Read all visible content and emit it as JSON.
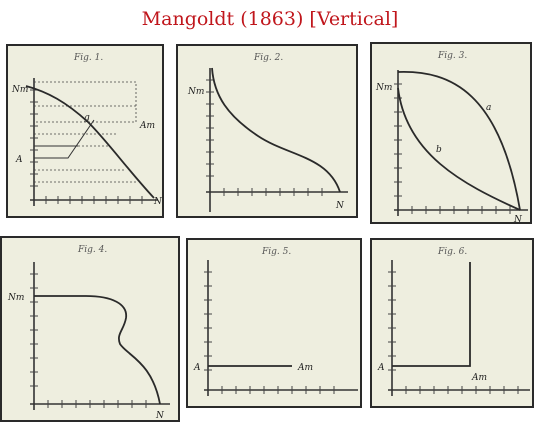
{
  "title": "Mangoldt (1863) [Vertical]",
  "figures": [
    {
      "caption": "Fig. 1.",
      "labels": {
        "nm": "Nm",
        "am": "Am",
        "a": "A",
        "n": "N",
        "g": "g"
      }
    },
    {
      "caption": "Fig. 2.",
      "labels": {
        "nm": "Nm",
        "n": "N"
      }
    },
    {
      "caption": "Fig. 3.",
      "labels": {
        "nm": "Nm",
        "a": "a",
        "b": "b",
        "n": "N"
      }
    },
    {
      "caption": "Fig. 4.",
      "labels": {
        "nm": "Nm",
        "n": "N"
      }
    },
    {
      "caption": "Fig. 5.",
      "labels": {
        "a": "A",
        "am": "Am"
      }
    },
    {
      "caption": "Fig. 6.",
      "labels": {
        "a": "A",
        "am": "Am"
      }
    }
  ]
}
